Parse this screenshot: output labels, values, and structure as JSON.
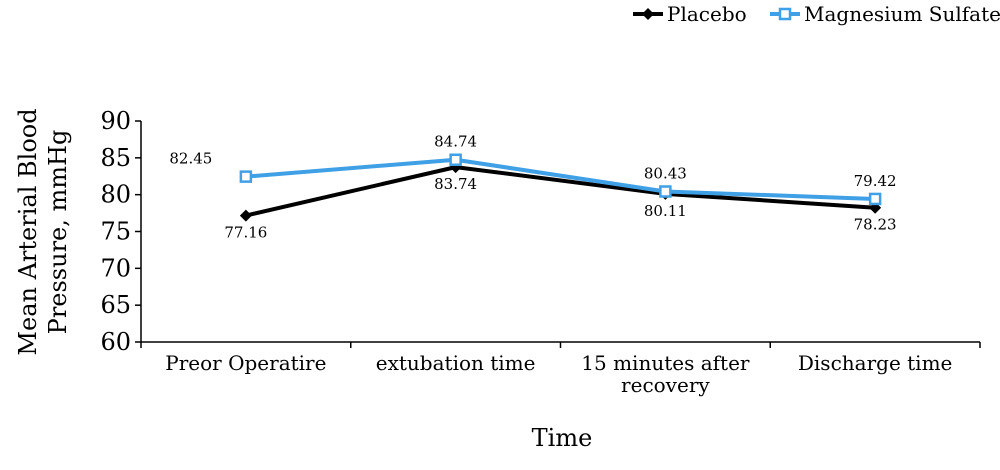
{
  "chart_data": {
    "type": "line",
    "categories": [
      [
        "Preor Operatire"
      ],
      [
        "extubation time"
      ],
      [
        "15 minutes after",
        "recovery"
      ],
      [
        "Discharge time"
      ]
    ],
    "series": [
      {
        "name": "Placebo",
        "values": [
          77.16,
          83.74,
          80.11,
          78.23
        ],
        "labels": [
          "77.16",
          "83.74",
          "80.11",
          "78.23"
        ],
        "label_position": "below",
        "color": "#000000",
        "marker": "diamond"
      },
      {
        "name": "Magnesium Sulfate",
        "values": [
          82.45,
          84.74,
          80.43,
          79.42
        ],
        "labels": [
          "82.45",
          "84.74",
          "80.43",
          "79.42"
        ],
        "label_position": "above",
        "color": "#3fa0e6",
        "marker": "square-open"
      }
    ],
    "title": "",
    "xlabel": "Time",
    "ylabel_lines": [
      "Mean Arterial Blood",
      "Pressure,  mmHg"
    ],
    "ylim": [
      60,
      90
    ],
    "yticks": [
      "60",
      "65",
      "70",
      "75",
      "80",
      "85",
      "90"
    ],
    "grid": false,
    "legend_placement": "top-right"
  }
}
